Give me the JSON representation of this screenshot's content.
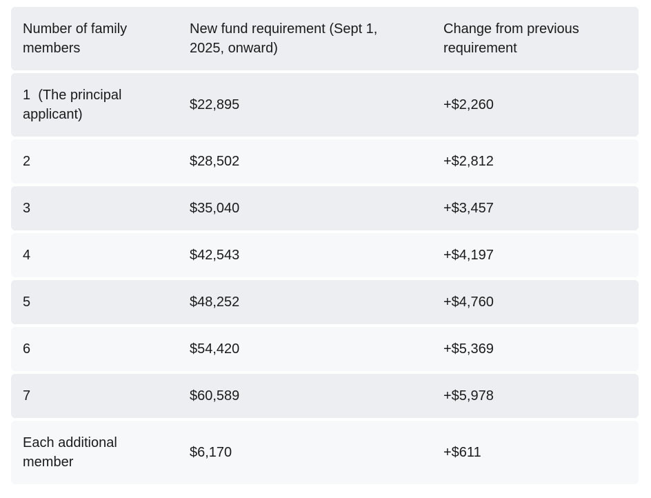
{
  "colors": {
    "row_shade_dark": "#edeef2",
    "row_shade_light": "#f7f8f9",
    "text": "#1a1a1a",
    "page_background": "#ffffff"
  },
  "table": {
    "columns": [
      {
        "label": "Number of family members"
      },
      {
        "label": "New fund requirement (Sept 1, 2025, onward)"
      },
      {
        "label": "Change from previous requirement"
      }
    ],
    "rows": [
      {
        "members": "1  (The principal applicant)",
        "new_requirement": "$22,895",
        "change": "+$2,260"
      },
      {
        "members": "2",
        "new_requirement": "$28,502",
        "change": "+$2,812"
      },
      {
        "members": "3",
        "new_requirement": "$35,040",
        "change": "+$3,457"
      },
      {
        "members": "4",
        "new_requirement": "$42,543",
        "change": "+$4,197"
      },
      {
        "members": "5",
        "new_requirement": "$48,252",
        "change": "+$4,760"
      },
      {
        "members": "6",
        "new_requirement": "$54,420",
        "change": "+$5,369"
      },
      {
        "members": "7",
        "new_requirement": "$60,589",
        "change": "+$5,978"
      },
      {
        "members": "Each additional member",
        "new_requirement": "$6,170",
        "change": "+$611"
      }
    ]
  }
}
